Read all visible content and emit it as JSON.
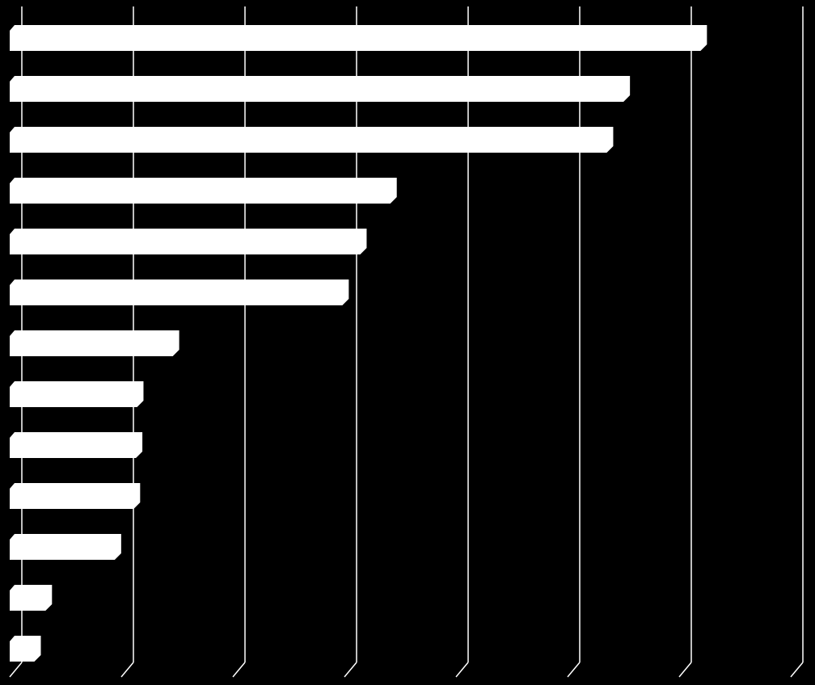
{
  "chart_data": {
    "type": "hbar",
    "categories": [
      null,
      null,
      null,
      null,
      null,
      null,
      null,
      null,
      null,
      null,
      null,
      null,
      null
    ],
    "values": [
      6.22,
      5.53,
      5.38,
      3.44,
      3.17,
      3.01,
      1.49,
      1.17,
      1.16,
      1.14,
      0.97,
      0.35,
      0.25
    ],
    "color": "#ffffff",
    "xlim": [
      0,
      7
    ],
    "xticks": [
      0,
      1,
      2,
      3,
      4,
      5,
      6,
      7
    ],
    "grid": true
  }
}
